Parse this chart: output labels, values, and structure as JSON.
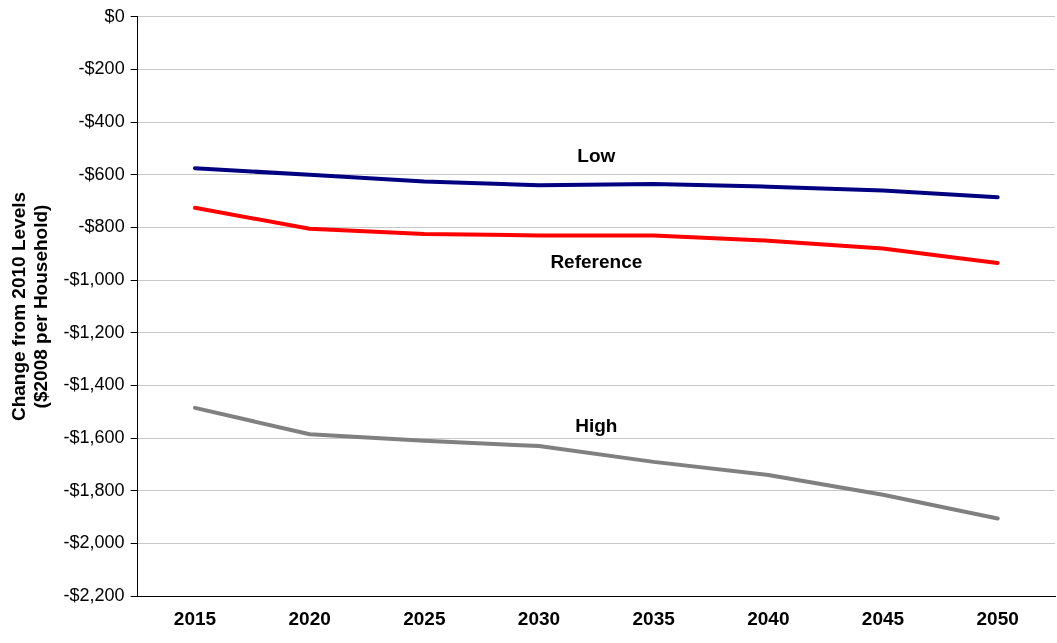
{
  "chart_data": {
    "type": "line",
    "ylabel": "Change from 2010 Levels\n($2008 per Household)",
    "categories": [
      "2015",
      "2020",
      "2025",
      "2030",
      "2035",
      "2040",
      "2045",
      "2050"
    ],
    "series": [
      {
        "name": "Low",
        "color": "#000080",
        "values": [
          -575,
          -600,
          -625,
          -640,
          -635,
          -645,
          -660,
          -685
        ]
      },
      {
        "name": "Reference",
        "color": "#ff0000",
        "values": [
          -725,
          -805,
          -825,
          -830,
          -830,
          -850,
          -880,
          -935
        ]
      },
      {
        "name": "High",
        "color": "#808080",
        "values": [
          -1485,
          -1585,
          -1610,
          -1630,
          -1690,
          -1740,
          -1815,
          -1905
        ]
      }
    ],
    "ylim": [
      -2200,
      0
    ],
    "yticks": [
      {
        "value": -2200,
        "label": "-$2,200"
      },
      {
        "value": -2000,
        "label": "-$2,000"
      },
      {
        "value": -1800,
        "label": "-$1,800"
      },
      {
        "value": -1600,
        "label": "-$1,600"
      },
      {
        "value": -1400,
        "label": "-$1,400"
      },
      {
        "value": -1200,
        "label": "-$1,200"
      },
      {
        "value": -1000,
        "label": "-$1,000"
      },
      {
        "value": -800,
        "label": "-$800"
      },
      {
        "value": -600,
        "label": "-$600"
      },
      {
        "value": -400,
        "label": "-$400"
      },
      {
        "value": -200,
        "label": "-$200"
      },
      {
        "value": 0,
        "label": "$0"
      }
    ],
    "grid": "y",
    "legend": false,
    "marker": "none",
    "line_style": "solid"
  }
}
